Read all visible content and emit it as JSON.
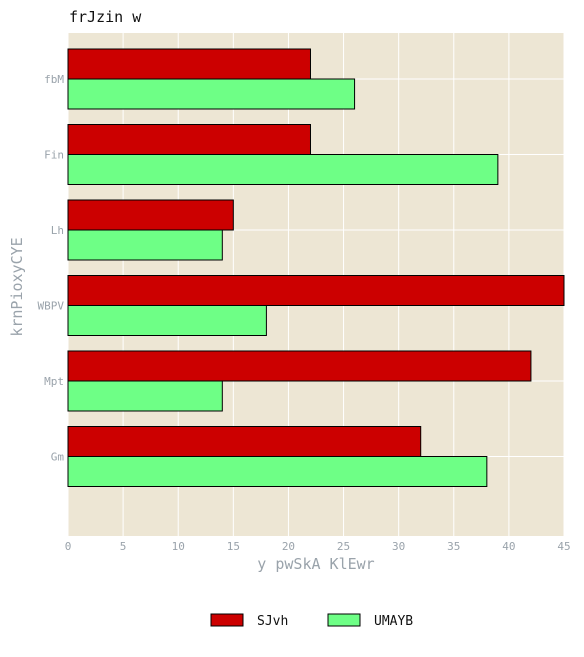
{
  "chart_data": {
    "type": "bar",
    "orientation": "horizontal",
    "title": "frJzin w",
    "xlabel": "y pwSkA KlEwr",
    "ylabel": "krnPioxyCYE",
    "categories": [
      "fbM",
      "Fin",
      "Lh",
      "WBPV",
      "Mpt",
      "Gm"
    ],
    "series": [
      {
        "name": "SJvh",
        "color": "#cc0000",
        "values": [
          22,
          22,
          15,
          45,
          42,
          32
        ]
      },
      {
        "name": "UMAYB",
        "color": "#6eff86",
        "values": [
          26,
          39,
          14,
          18,
          14,
          38
        ]
      }
    ],
    "xlim": [
      0,
      45
    ],
    "xticks": [
      "0",
      "5",
      "10",
      "15",
      "20",
      "25",
      "30",
      "35",
      "40",
      "45"
    ],
    "grid": true,
    "legend_position": "bottom-center",
    "plot_background": "#ede6d4"
  }
}
